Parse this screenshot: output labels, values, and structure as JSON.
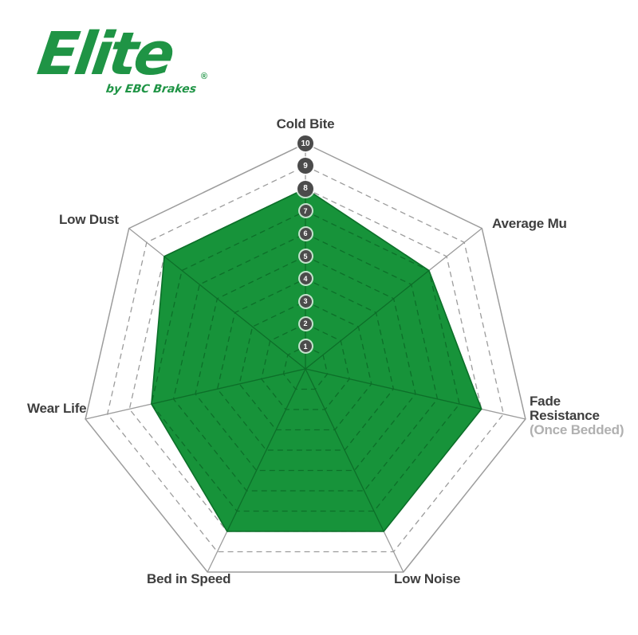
{
  "logo": {
    "brand": "Elite",
    "registered": "®",
    "tagline": "by EBC Brakes",
    "color": "#1f9445"
  },
  "chart_data": {
    "type": "radar",
    "categories": [
      "Cold Bite",
      "Average Mu",
      "Fade Resistance (Once Bedded)",
      "Low Noise",
      "Bed in Speed",
      "Wear Life",
      "Low Dust"
    ],
    "values": [
      8,
      7,
      8,
      8,
      8,
      7,
      8
    ],
    "scale": {
      "min": 0,
      "max": 10,
      "ticks": [
        10,
        9,
        8,
        7,
        6,
        5,
        4,
        3,
        2,
        1
      ]
    },
    "grid": {
      "outer_ring": "solid",
      "inner_rings": "dashed",
      "spokes": true,
      "num_axes": 7
    },
    "legend_position": "none",
    "axis_labels": {
      "cold_bite": "Cold Bite",
      "average_mu": "Average Mu",
      "fade_resistance_1": "Fade",
      "fade_resistance_2": "Resistance",
      "fade_resistance_3": "(Once Bedded)",
      "low_noise": "Low Noise",
      "bed_in_speed": "Bed in Speed",
      "wear_life": "Wear Life",
      "low_dust": "Low Dust"
    },
    "colors": {
      "fill": "#17933a",
      "data_outline": "#0c6f29",
      "inner_grid_on_fill": "#0d6f29",
      "grid": "#9c9c9c",
      "tick_badge": "#4b4b4b",
      "tick_text": "#ffffff",
      "label": "#3e3e3e",
      "sub_label": "#b0b0b0"
    }
  }
}
